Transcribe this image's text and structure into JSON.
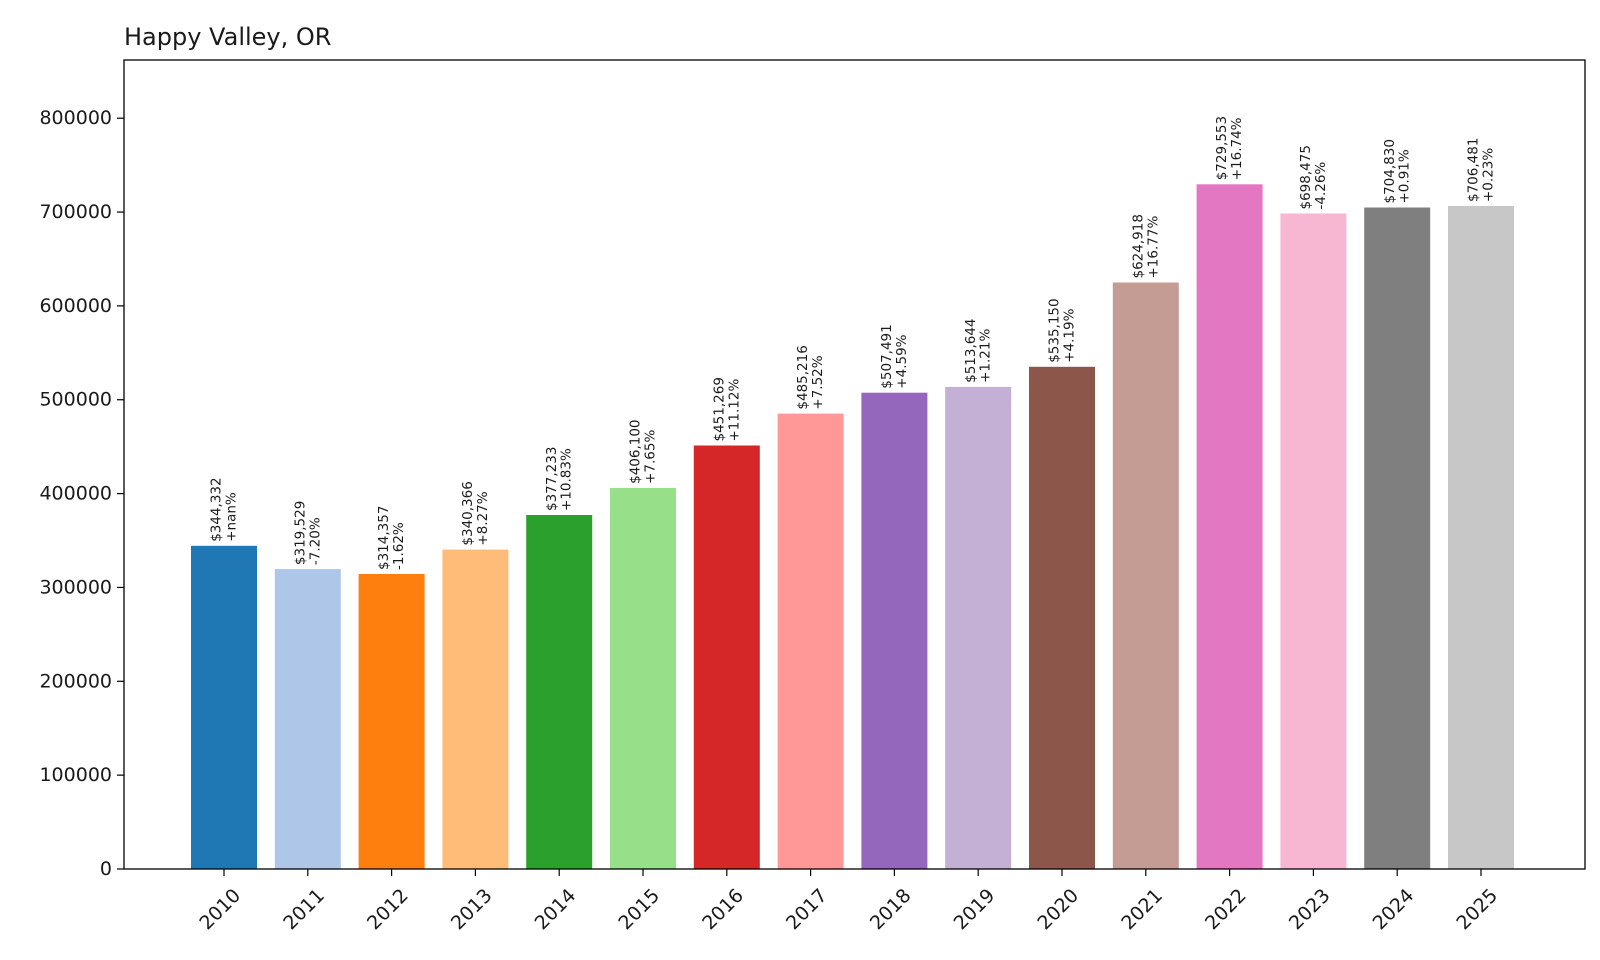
{
  "chart_data": {
    "type": "bar",
    "title": "Happy Valley, OR",
    "xlabel": "",
    "ylabel": "",
    "categories": [
      "2010",
      "2011",
      "2012",
      "2013",
      "2014",
      "2015",
      "2016",
      "2017",
      "2018",
      "2019",
      "2020",
      "2021",
      "2022",
      "2023",
      "2024",
      "2025"
    ],
    "values": [
      344332,
      319529,
      314357,
      340366,
      377233,
      406100,
      451269,
      485216,
      507491,
      513644,
      535150,
      624918,
      729553,
      698475,
      704830,
      706481
    ],
    "value_labels": [
      "$344,332",
      "$319,529",
      "$314,357",
      "$340,366",
      "$377,233",
      "$406,100",
      "$451,269",
      "$485,216",
      "$507,491",
      "$513,644",
      "$535,150",
      "$624,918",
      "$729,553",
      "$698,475",
      "$704,830",
      "$706,481"
    ],
    "change_labels": [
      "+nan%",
      "-7.20%",
      "-1.62%",
      "+8.27%",
      "+10.83%",
      "+7.65%",
      "+11.12%",
      "+7.52%",
      "+4.59%",
      "+1.21%",
      "+4.19%",
      "+16.77%",
      "+16.74%",
      "-4.26%",
      "+0.91%",
      "+0.23%"
    ],
    "colors": [
      "#1f77b4",
      "#aec7e8",
      "#ff7f0e",
      "#ffbb78",
      "#2ca02c",
      "#98df8a",
      "#d62728",
      "#ff9896",
      "#9467bd",
      "#c5b0d5",
      "#8c564b",
      "#c49c94",
      "#e377c2",
      "#f7b6d2",
      "#7f7f7f",
      "#c7c7c7"
    ],
    "ylim": [
      0,
      862000
    ],
    "yticks": [
      0,
      100000,
      200000,
      300000,
      400000,
      500000,
      600000,
      700000,
      800000
    ],
    "ytick_labels": [
      "0",
      "100000",
      "200000",
      "300000",
      "400000",
      "500000",
      "600000",
      "700000",
      "800000"
    ],
    "grid": false,
    "legend": "none"
  }
}
